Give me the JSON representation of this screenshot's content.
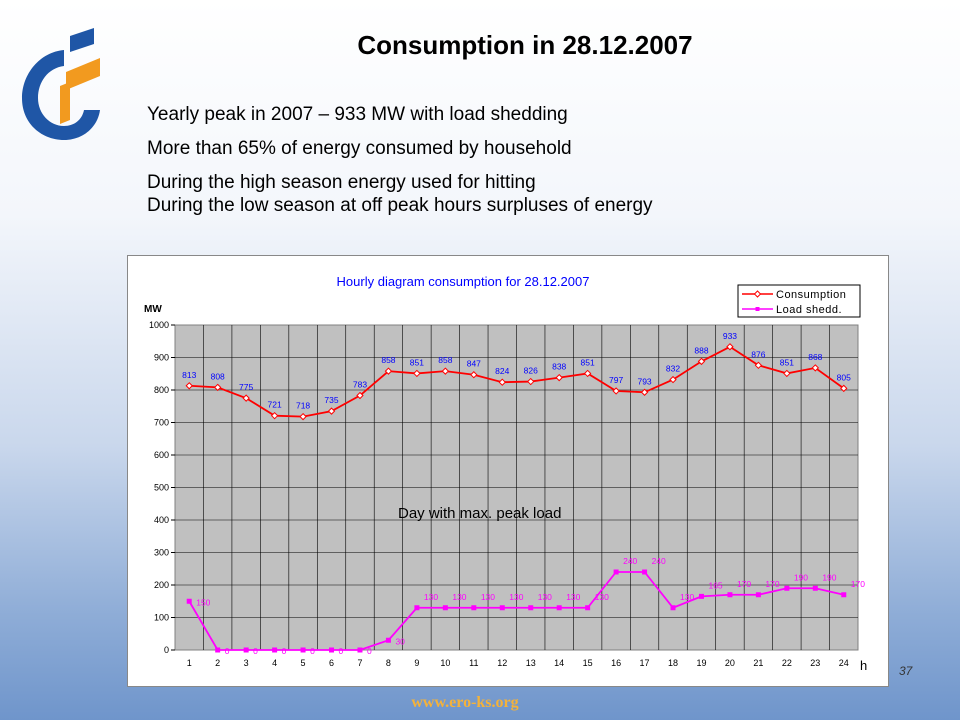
{
  "slide": {
    "title": "Consumption in 28.12.2007",
    "bullets": [
      "Yearly peak in 2007 – 933 MW with load shedding",
      "More than 65% of energy consumed by household",
      "During the high season energy used for hitting",
      "During the low season at off peak hours surpluses of energy"
    ],
    "page_number": "37",
    "footer_url": "www.ero-ks.org",
    "colors": {
      "logo_blue": "#1f56a6",
      "logo_orange": "#f29a1f",
      "footer_text": "#f4b23a"
    }
  },
  "chart_data": {
    "type": "line",
    "title": "Hourly diagram consumption for 28.12.2007",
    "ylabel": "MW",
    "xlabel": "h",
    "ylim": [
      0,
      1000
    ],
    "yticks": [
      0,
      100,
      200,
      300,
      400,
      500,
      600,
      700,
      800,
      900,
      1000
    ],
    "x": [
      1,
      2,
      3,
      4,
      5,
      6,
      7,
      8,
      9,
      10,
      11,
      12,
      13,
      14,
      15,
      16,
      17,
      18,
      19,
      20,
      21,
      22,
      23,
      24
    ],
    "grid": true,
    "legend_position": "top-right",
    "annotation": "Day with max. peak load",
    "colors": {
      "plot_bg": "#c0c0c0",
      "title": "#0000ff"
    },
    "series": [
      {
        "name": "Consumption",
        "color": "#ff0000",
        "label_color": "#0000ff",
        "values": [
          813,
          808,
          775,
          721,
          718,
          735,
          783,
          858,
          851,
          858,
          847,
          824,
          826,
          838,
          851,
          797,
          793,
          832,
          888,
          933,
          876,
          851,
          868,
          805
        ]
      },
      {
        "name": "Load shedd.",
        "color": "#ff00ff",
        "label_color": "#ff00ff",
        "values": [
          150,
          0,
          0,
          0,
          0,
          0,
          0,
          30,
          130,
          130,
          130,
          130,
          130,
          130,
          130,
          240,
          240,
          130,
          165,
          170,
          170,
          190,
          190,
          170
        ]
      }
    ]
  }
}
